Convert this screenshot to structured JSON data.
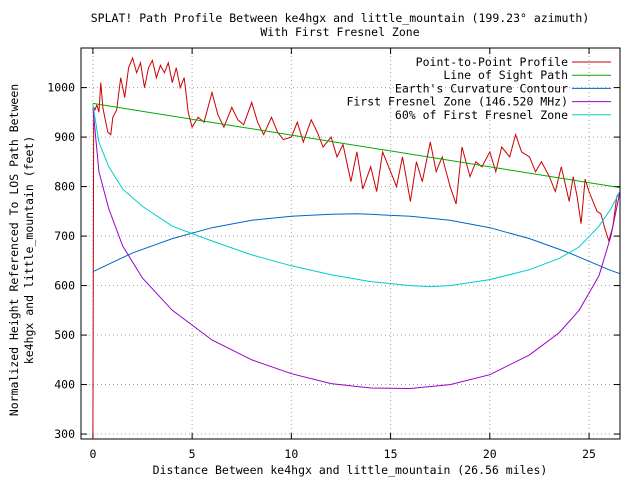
{
  "chart_data": {
    "type": "line",
    "title": "SPLAT! Path Profile Between ke4hgx and little_mountain (199.23° azimuth)",
    "subtitle": "With First Fresnel Zone",
    "xlabel": "Distance Between ke4hgx and little_mountain (26.56 miles)",
    "ylabel_line1": "Normalized Height Referenced To LOS Path Between",
    "ylabel_line2": "ke4hgx and little_mountain (feet)",
    "xlim": [
      -0.6,
      26.56
    ],
    "ylim": [
      290,
      1080
    ],
    "x_ticks": [
      0,
      5,
      10,
      15,
      20,
      25
    ],
    "y_ticks": [
      300,
      400,
      500,
      600,
      700,
      800,
      900,
      1000
    ],
    "x_tick_labels": [
      "0",
      "5",
      "10",
      "15",
      "20",
      "25"
    ],
    "y_tick_labels": [
      "300",
      "400",
      "500",
      "600",
      "700",
      "800",
      "900",
      "1000"
    ],
    "grid": true,
    "legend_position": "top-right",
    "series": [
      {
        "name": "Point-to-Point Profile",
        "color": "#cc0000",
        "x": [
          0,
          0.04,
          0.1,
          0.2,
          0.3,
          0.4,
          0.5,
          0.6,
          0.75,
          0.9,
          1.0,
          1.2,
          1.4,
          1.6,
          1.8,
          2.0,
          2.2,
          2.4,
          2.6,
          2.8,
          3.0,
          3.2,
          3.4,
          3.6,
          3.8,
          4.0,
          4.2,
          4.4,
          4.6,
          4.8,
          5.0,
          5.3,
          5.6,
          6.0,
          6.3,
          6.6,
          7.0,
          7.3,
          7.6,
          8.0,
          8.3,
          8.6,
          9.0,
          9.3,
          9.6,
          10.0,
          10.3,
          10.6,
          11.0,
          11.3,
          11.6,
          12.0,
          12.3,
          12.6,
          13.0,
          13.3,
          13.6,
          14.0,
          14.3,
          14.6,
          15.0,
          15.3,
          15.6,
          16.0,
          16.3,
          16.6,
          17.0,
          17.3,
          17.6,
          18.0,
          18.3,
          18.6,
          19.0,
          19.3,
          19.6,
          20.0,
          20.3,
          20.6,
          21.0,
          21.3,
          21.6,
          22.0,
          22.3,
          22.6,
          23.0,
          23.3,
          23.6,
          24.0,
          24.2,
          24.4,
          24.6,
          24.8,
          25.0,
          25.2,
          25.4,
          25.6,
          25.8,
          26.0,
          26.2,
          26.4,
          26.56
        ],
        "values": [
          290,
          960,
          955,
          965,
          950,
          1010,
          960,
          940,
          910,
          905,
          940,
          955,
          1020,
          980,
          1040,
          1060,
          1030,
          1050,
          1000,
          1040,
          1055,
          1020,
          1045,
          1030,
          1050,
          1010,
          1040,
          1000,
          1020,
          950,
          920,
          940,
          930,
          990,
          945,
          920,
          960,
          935,
          925,
          970,
          930,
          905,
          940,
          910,
          895,
          900,
          930,
          890,
          935,
          910,
          880,
          900,
          860,
          885,
          810,
          870,
          795,
          840,
          790,
          870,
          830,
          800,
          860,
          770,
          850,
          810,
          890,
          830,
          860,
          800,
          765,
          880,
          820,
          850,
          840,
          870,
          830,
          880,
          860,
          905,
          870,
          860,
          830,
          850,
          820,
          790,
          840,
          770,
          820,
          780,
          725,
          815,
          790,
          770,
          750,
          745,
          715,
          690,
          720,
          780,
          790
        ]
      },
      {
        "name": "Line of Sight Path",
        "color": "#00aa00",
        "x": [
          0,
          26.56
        ],
        "values": [
          968,
          798
        ]
      },
      {
        "name": "Earth's Curvature Contour",
        "color": "#0066cc",
        "x": [
          0,
          2,
          4,
          6,
          8,
          10,
          12,
          13.28,
          14,
          16,
          18,
          20,
          22,
          24,
          26,
          26.56
        ],
        "values": [
          628,
          666,
          695,
          717,
          732,
          740,
          744,
          745,
          744,
          740,
          732,
          717,
          695,
          666,
          632,
          624
        ]
      },
      {
        "name": "First Fresnel Zone (146.520 MHz)",
        "color": "#9900cc",
        "x": [
          0,
          0.3,
          0.8,
          1.5,
          2.5,
          4,
          6,
          8,
          10,
          12,
          14,
          16,
          18,
          20,
          22,
          23.5,
          24.5,
          25.5,
          26.1,
          26.56
        ],
        "values": [
          960,
          830,
          755,
          680,
          615,
          550,
          490,
          450,
          422,
          402,
          393,
          392,
          400,
          420,
          460,
          505,
          550,
          620,
          700,
          790
        ]
      },
      {
        "name": "60% of First Fresnel Zone",
        "color": "#00cccc",
        "x": [
          0,
          0.3,
          0.8,
          1.5,
          2.5,
          4,
          6,
          8,
          10,
          12,
          14,
          16,
          17,
          18,
          20,
          22,
          23.5,
          24.5,
          25.5,
          26.1,
          26.56
        ],
        "values": [
          965,
          890,
          840,
          795,
          760,
          720,
          690,
          662,
          640,
          622,
          608,
          600,
          598,
          600,
          612,
          632,
          655,
          678,
          720,
          755,
          790
        ]
      }
    ]
  }
}
